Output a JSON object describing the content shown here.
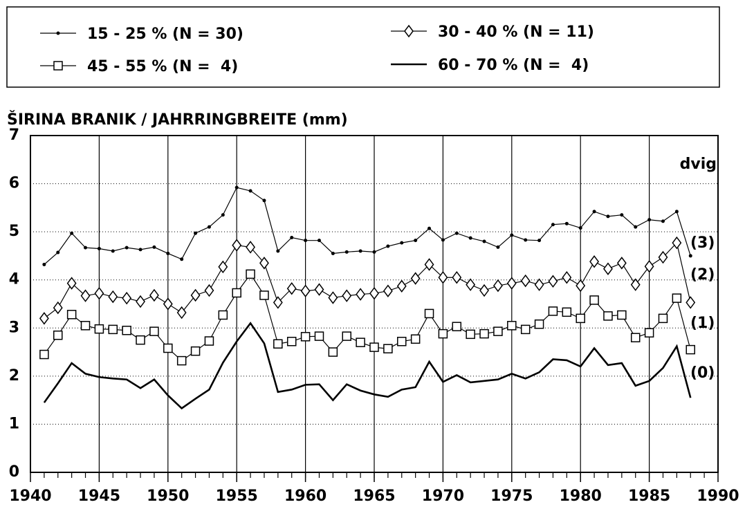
{
  "chart_data": {
    "type": "line",
    "title": "ŠIRINA BRANIK / JAHRRINGBREITE (mm)",
    "annotations": [
      "dvig",
      "(3)",
      "(2)",
      "(1)",
      "(0)"
    ],
    "x": [
      1941,
      1942,
      1943,
      1944,
      1945,
      1946,
      1947,
      1948,
      1949,
      1950,
      1951,
      1952,
      1953,
      1954,
      1955,
      1956,
      1957,
      1958,
      1959,
      1960,
      1961,
      1962,
      1963,
      1964,
      1965,
      1966,
      1967,
      1968,
      1969,
      1970,
      1971,
      1972,
      1973,
      1974,
      1975,
      1976,
      1977,
      1978,
      1979,
      1980,
      1981,
      1982,
      1983,
      1984,
      1985,
      1986,
      1987,
      1988
    ],
    "series": [
      {
        "name": "15 - 25 % (N = 30)",
        "color": "#000000",
        "marker": "dot",
        "line_width": 1.2,
        "values": [
          4.32,
          4.57,
          4.97,
          4.67,
          4.65,
          4.6,
          4.67,
          4.63,
          4.68,
          4.55,
          4.43,
          4.97,
          5.1,
          5.35,
          5.92,
          5.85,
          5.65,
          4.6,
          4.88,
          4.82,
          4.82,
          4.55,
          4.58,
          4.6,
          4.58,
          4.7,
          4.77,
          4.82,
          5.07,
          4.83,
          4.97,
          4.87,
          4.8,
          4.68,
          4.93,
          4.83,
          4.82,
          5.15,
          5.17,
          5.08,
          5.42,
          5.32,
          5.35,
          5.1,
          5.25,
          5.22,
          5.42,
          4.5
        ]
      },
      {
        "name": "30 - 40 % (N = 11)",
        "color": "#000000",
        "marker": "diamond",
        "line_width": 1.2,
        "values": [
          3.2,
          3.42,
          3.93,
          3.67,
          3.72,
          3.65,
          3.62,
          3.55,
          3.68,
          3.5,
          3.32,
          3.68,
          3.78,
          4.27,
          4.72,
          4.68,
          4.35,
          3.53,
          3.82,
          3.77,
          3.8,
          3.63,
          3.67,
          3.7,
          3.72,
          3.77,
          3.87,
          4.03,
          4.32,
          4.05,
          4.05,
          3.9,
          3.78,
          3.88,
          3.93,
          3.98,
          3.9,
          3.97,
          4.05,
          3.88,
          4.38,
          4.23,
          4.35,
          3.9,
          4.28,
          4.47,
          4.77,
          3.53
        ]
      },
      {
        "name": "45 - 55 % (N =  4)",
        "color": "#000000",
        "marker": "square",
        "line_width": 1.2,
        "values": [
          2.45,
          2.85,
          3.28,
          3.05,
          2.98,
          2.97,
          2.95,
          2.75,
          2.93,
          2.58,
          2.32,
          2.52,
          2.73,
          3.27,
          3.73,
          4.12,
          3.68,
          2.67,
          2.72,
          2.82,
          2.83,
          2.5,
          2.83,
          2.7,
          2.6,
          2.57,
          2.72,
          2.77,
          3.3,
          2.88,
          3.03,
          2.87,
          2.88,
          2.93,
          3.05,
          2.97,
          3.08,
          3.35,
          3.33,
          3.2,
          3.58,
          3.25,
          3.27,
          2.8,
          2.9,
          3.2,
          3.62,
          2.55
        ]
      },
      {
        "name": "60 - 70 % (N =  4)",
        "color": "#000000",
        "marker": "none",
        "line_width": 2.6,
        "values": [
          1.45,
          1.85,
          2.27,
          2.05,
          1.98,
          1.95,
          1.93,
          1.75,
          1.93,
          1.6,
          1.33,
          1.53,
          1.72,
          2.28,
          2.72,
          3.1,
          2.68,
          1.67,
          1.72,
          1.82,
          1.83,
          1.5,
          1.83,
          1.7,
          1.62,
          1.57,
          1.72,
          1.77,
          2.3,
          1.88,
          2.02,
          1.87,
          1.9,
          1.93,
          2.05,
          1.95,
          2.08,
          2.35,
          2.33,
          2.2,
          2.58,
          2.23,
          2.27,
          1.8,
          1.9,
          2.17,
          2.62,
          1.55
        ]
      }
    ],
    "xlim": [
      1940,
      1990
    ],
    "xticks": [
      1940,
      1945,
      1950,
      1955,
      1960,
      1965,
      1970,
      1975,
      1980,
      1985,
      1990
    ],
    "ylim": [
      0,
      7
    ],
    "yticks": [
      0,
      1,
      2,
      3,
      4,
      5,
      6,
      7
    ],
    "grid": true
  }
}
